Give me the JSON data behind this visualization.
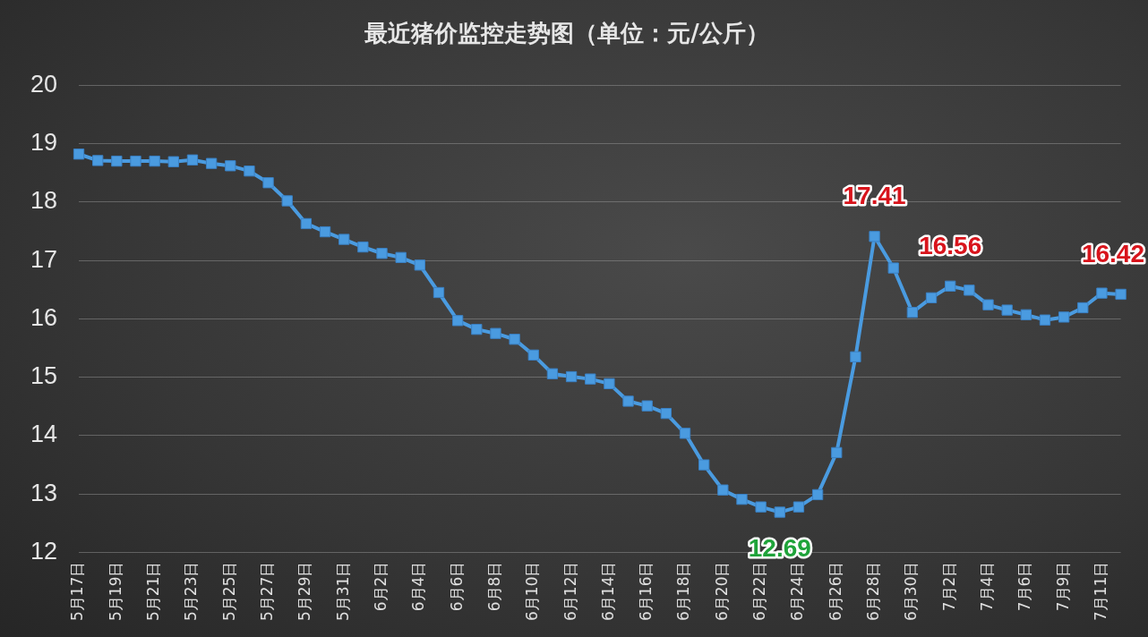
{
  "chart_data": {
    "type": "line",
    "title": "最近猪价监控走势图（单位：元/公斤）",
    "categories": [
      "5月17日",
      null,
      "5月19日",
      null,
      "5月21日",
      null,
      "5月23日",
      null,
      "5月25日",
      null,
      "5月27日",
      null,
      "5月29日",
      null,
      "5月31日",
      null,
      "6月2日",
      null,
      "6月4日",
      null,
      "6月6日",
      null,
      "6月8日",
      null,
      "6月10日",
      null,
      "6月12日",
      null,
      "6月14日",
      null,
      "6月16日",
      null,
      "6月18日",
      null,
      "6月20日",
      null,
      "6月22日",
      null,
      "6月24日",
      null,
      "6月26日",
      null,
      "6月28日",
      null,
      "6月30日",
      null,
      "7月2日",
      null,
      "7月4日",
      null,
      "7月6日",
      null,
      "7月9日",
      null,
      "7月11日",
      null
    ],
    "series": [
      {
        "color": "#4a9be0",
        "values": [
          18.82,
          18.71,
          18.7,
          18.7,
          18.7,
          18.69,
          18.72,
          18.66,
          18.62,
          18.53,
          18.33,
          18.02,
          17.63,
          17.49,
          17.36,
          17.23,
          17.12,
          17.05,
          16.92,
          16.45,
          15.97,
          15.82,
          15.75,
          15.65,
          15.38,
          15.06,
          15.01,
          14.97,
          14.89,
          14.59,
          14.51,
          14.38,
          14.04,
          13.5,
          13.07,
          12.91,
          12.78,
          12.69,
          12.78,
          12.99,
          13.71,
          15.35,
          17.41,
          16.87,
          16.11,
          16.36,
          16.56,
          16.49,
          16.24,
          16.15,
          16.07,
          15.98,
          16.03,
          16.19,
          16.44,
          16.42
        ],
        "value_labels": [
          null,
          null,
          null,
          null,
          null,
          null,
          null,
          null,
          null,
          null,
          null,
          null,
          null,
          null,
          null,
          null,
          null,
          null,
          null,
          null,
          null,
          null,
          null,
          null,
          null,
          null,
          null,
          null,
          null,
          null,
          null,
          null,
          null,
          null,
          null,
          null,
          null,
          "12.69",
          null,
          null,
          null,
          null,
          "17.41",
          null,
          null,
          null,
          "16.56",
          null,
          null,
          null,
          null,
          null,
          null,
          null,
          null,
          "16.42"
        ]
      }
    ],
    "ylim": [
      12,
      20
    ],
    "yticks": [
      12,
      13,
      14,
      15,
      16,
      17,
      18,
      19,
      20
    ],
    "grid": "y",
    "legend": false,
    "marker": "square",
    "line_style": "solid"
  }
}
